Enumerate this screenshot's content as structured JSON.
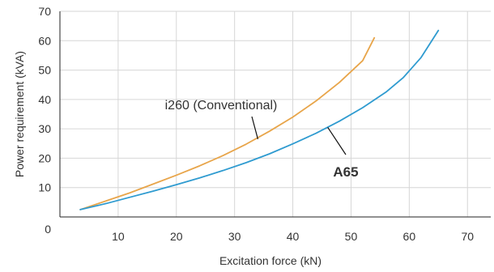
{
  "chart_data": {
    "type": "line",
    "xlabel": "Excitation force (kN)",
    "ylabel": "Power requirement (kVA)",
    "xlim": [
      0,
      74
    ],
    "ylim": [
      0,
      70
    ],
    "x_ticks": [
      "10",
      "20",
      "30",
      "40",
      "50",
      "60",
      "70"
    ],
    "x_tick_values": [
      10,
      20,
      30,
      40,
      50,
      60,
      70
    ],
    "y_ticks": [
      "0",
      "10",
      "20",
      "30",
      "40",
      "50",
      "60",
      "70"
    ],
    "y_tick_values": [
      0,
      10,
      20,
      30,
      40,
      50,
      60,
      70
    ],
    "grid": "vertical-and-horizontal",
    "series": [
      {
        "name": "i260 (Conventional)",
        "color": "#e8a54a",
        "x": [
          3.5,
          8,
          12,
          16,
          20,
          24,
          28,
          32,
          36,
          40,
          44,
          48,
          52,
          54
        ],
        "y": [
          2.5,
          5.5,
          8.2,
          11.2,
          14.2,
          17.4,
          20.9,
          24.8,
          29.2,
          34.0,
          39.5,
          45.8,
          53.2,
          61.0
        ]
      },
      {
        "name": "A65",
        "color": "#2f9bd0",
        "x": [
          3.5,
          8,
          12,
          16,
          20,
          24,
          28,
          32,
          36,
          40,
          44,
          48,
          52,
          56,
          59,
          62,
          65
        ],
        "y": [
          2.5,
          4.6,
          6.7,
          8.8,
          11.0,
          13.3,
          15.8,
          18.5,
          21.5,
          24.9,
          28.5,
          32.6,
          37.2,
          42.5,
          47.5,
          54.2,
          63.5
        ]
      }
    ],
    "annotations": [
      {
        "series": "i260 (Conventional)",
        "label": "i260 (Conventional)",
        "style": "normal",
        "point_x": 34,
        "point_y": 26.5
      },
      {
        "series": "A65",
        "label": "A65",
        "style": "bold",
        "point_x": 46,
        "point_y": 30.5
      }
    ]
  }
}
